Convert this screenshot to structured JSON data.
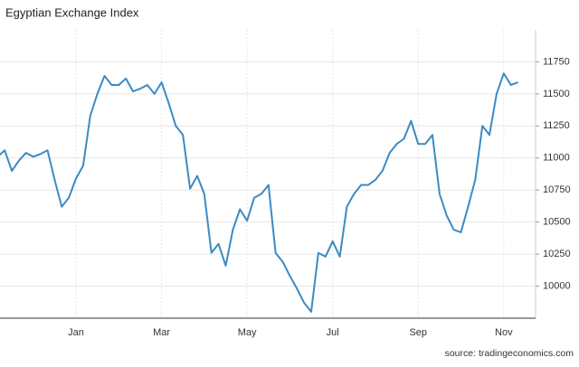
{
  "chart_data": {
    "type": "line",
    "title": "Egyptian Exchange Index",
    "source": "source: tradingeconomics.com",
    "categories": [
      null,
      null,
      null,
      null,
      null,
      null,
      null,
      null,
      null,
      null,
      null,
      "Jan",
      null,
      null,
      null,
      null,
      null,
      null,
      null,
      null,
      null,
      null,
      null,
      "Mar",
      null,
      null,
      null,
      null,
      null,
      null,
      null,
      null,
      null,
      null,
      null,
      "May",
      null,
      null,
      null,
      null,
      null,
      null,
      null,
      null,
      null,
      null,
      null,
      "Jul",
      null,
      null,
      null,
      null,
      null,
      null,
      null,
      null,
      null,
      null,
      null,
      "Sep",
      null,
      null,
      null,
      null,
      null,
      null,
      null,
      null,
      null,
      null,
      null,
      "Nov",
      null,
      null
    ],
    "series": [
      {
        "name": "Egyptian Exchange Index",
        "color": "#3b8bc4",
        "values": [
          11010,
          11060,
          10900,
          10980,
          11040,
          11010,
          11030,
          11060,
          10830,
          10620,
          10690,
          10840,
          10940,
          11330,
          11500,
          11640,
          11570,
          11570,
          11620,
          11520,
          11540,
          11570,
          11500,
          11590,
          11430,
          11250,
          11180,
          10760,
          10860,
          10720,
          10260,
          10330,
          10160,
          10440,
          10600,
          10510,
          10690,
          10720,
          10790,
          10260,
          10190,
          10080,
          9980,
          9870,
          9800,
          10260,
          10230,
          10350,
          10230,
          10620,
          10720,
          10790,
          10790,
          10830,
          10900,
          11040,
          11110,
          11150,
          11290,
          11110,
          11110,
          11180,
          10720,
          10550,
          10440,
          10420,
          10620,
          10830,
          11250,
          11180,
          11500,
          11660,
          11570,
          11590
        ]
      }
    ],
    "ylim": [
      9750,
      12000
    ],
    "yticks": [
      10000,
      10250,
      10500,
      10750,
      11000,
      11250,
      11500,
      11750
    ],
    "grid": true
  }
}
